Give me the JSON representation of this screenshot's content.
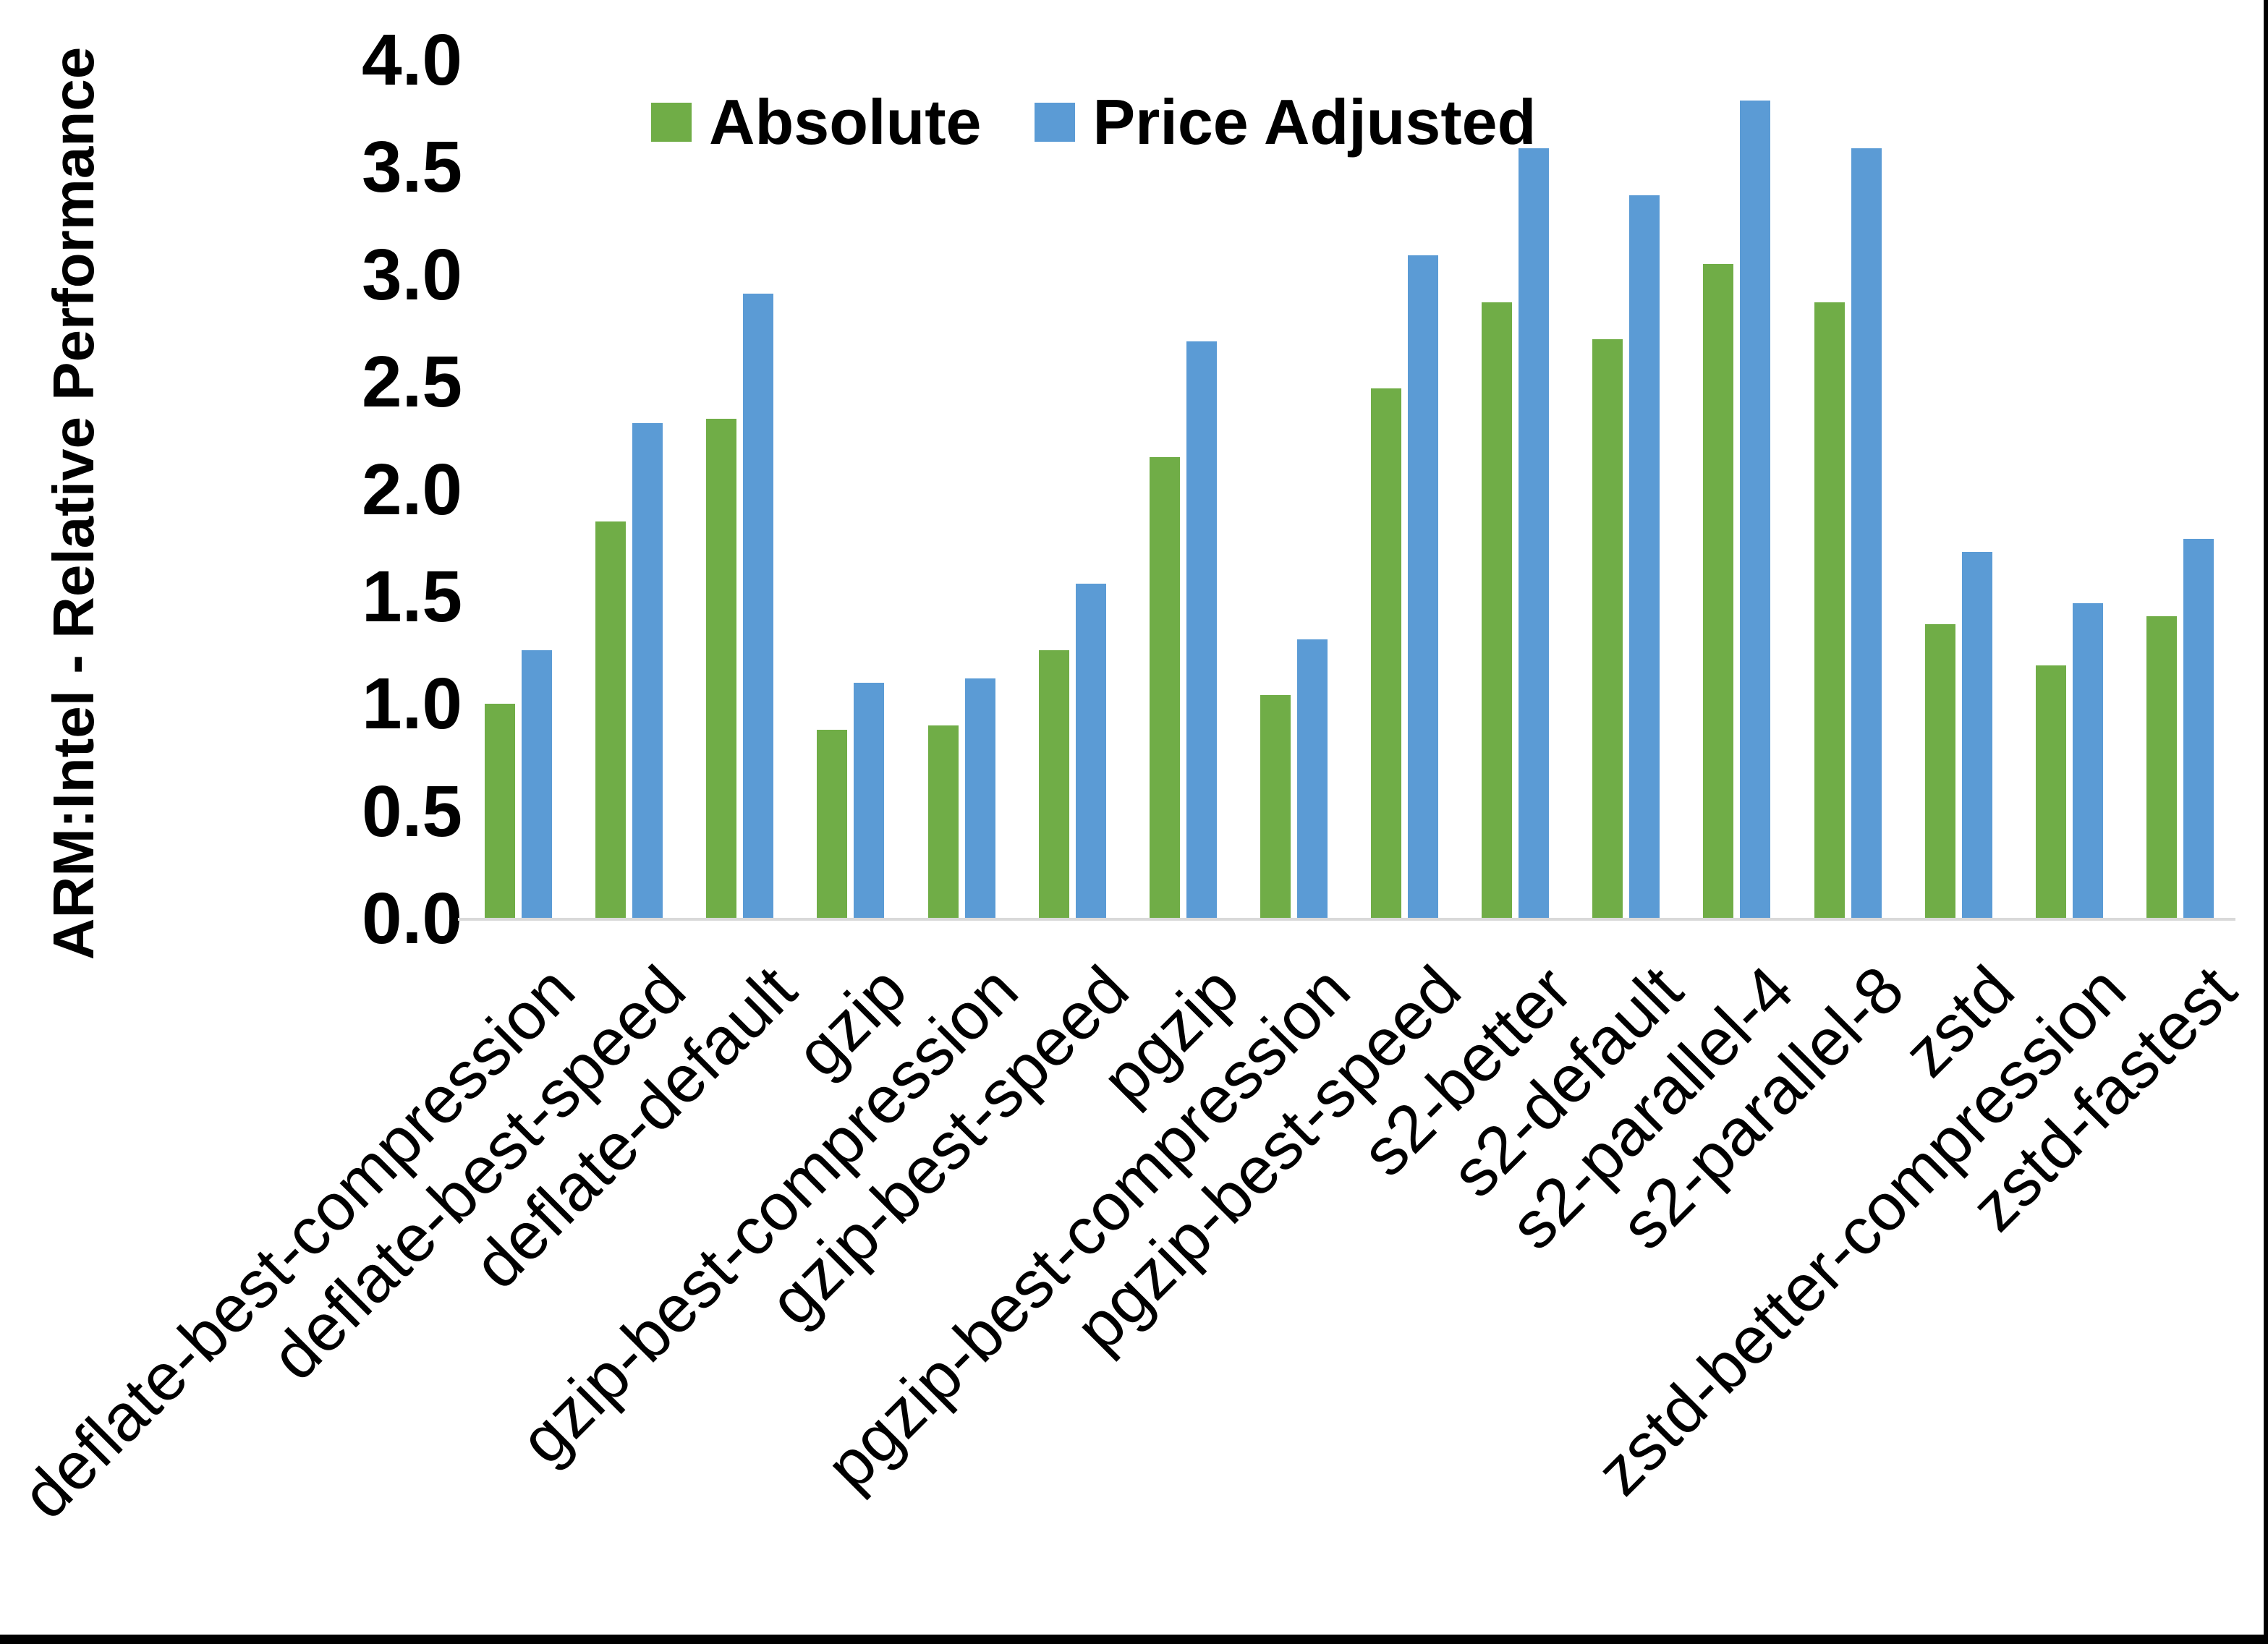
{
  "chart_data": {
    "type": "bar",
    "title": "",
    "xlabel": "",
    "ylabel": "ARM:Intel - Relative Performance",
    "ylim": [
      0.0,
      4.0
    ],
    "ytick_step": 0.5,
    "ytick_labels": [
      "4.0",
      "3.5",
      "3.0",
      "2.5",
      "2.0",
      "1.5",
      "1.0",
      "0.5",
      "0.0"
    ],
    "grid": false,
    "legend_position": "top-center",
    "categories": [
      "deflate-best-compression",
      "deflate-best-speed",
      "deflate-default",
      "gzip",
      "gzip-best-compression",
      "gzip-best-speed",
      "pgzip",
      "pgzip-best-compression",
      "pgzip-best-speed",
      "s2-better",
      "s2-default",
      "s2-parallel-4",
      "s2-parallel-8",
      "zstd",
      "zstd-better-compression",
      "zstd-fastest"
    ],
    "series": [
      {
        "name": "Absolute",
        "color": "#70AD47",
        "values": [
          1.0,
          1.85,
          2.33,
          0.88,
          0.9,
          1.25,
          2.15,
          1.04,
          2.47,
          2.87,
          2.7,
          3.05,
          2.87,
          1.37,
          1.18,
          1.41
        ]
      },
      {
        "name": "Price Adjusted",
        "color": "#5B9BD5",
        "values": [
          1.25,
          2.31,
          2.91,
          1.1,
          1.12,
          1.56,
          2.69,
          1.3,
          3.09,
          3.59,
          3.37,
          3.81,
          3.59,
          1.71,
          1.47,
          1.77
        ]
      }
    ]
  },
  "style_colors": {
    "background": "#FFFFFF",
    "text": "#000000",
    "axis_line": "#D9D9D9",
    "border": "#000000",
    "series_absolute": "#70AD47",
    "series_price_adjusted": "#5B9BD5"
  }
}
